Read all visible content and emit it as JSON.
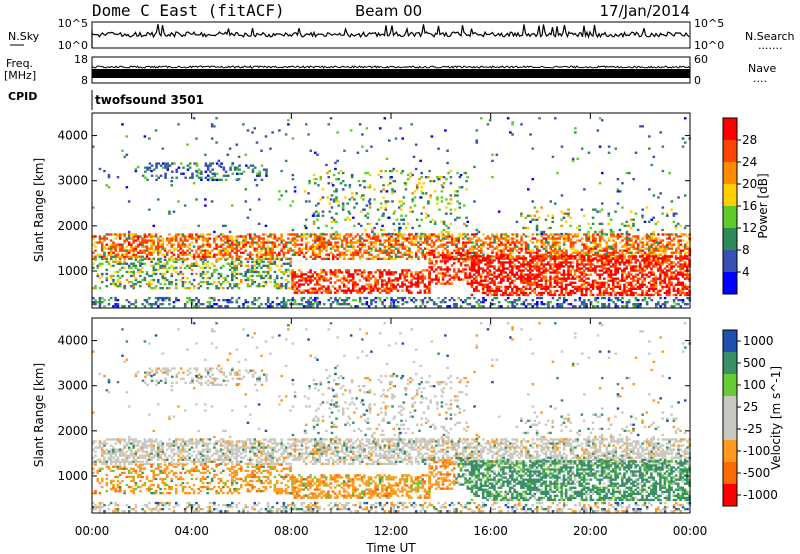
{
  "header": {
    "station": "Dome C East (fitACF)",
    "beam": "Beam 00",
    "date": "17/Jan/2014"
  },
  "strips": {
    "nsky_label": "N.Sky",
    "nsearch_label": "N.Search",
    "nsearch_dots": ".......",
    "nsky_top": "10^5",
    "nsky_bottom": "10^0",
    "nsearch_top": "10^5",
    "nsearch_bottom": "10^0",
    "freq_label_1": "Freq.",
    "freq_label_2": "[MHz]",
    "freq_top": "18",
    "freq_bottom": "8",
    "nave_label": "Nave",
    "nave_dots": "....",
    "nave_top": "60",
    "nave_bottom": "0",
    "cpid_label": "CPID",
    "cpid_value": "twofsound 3501"
  },
  "colors": {
    "power": [
      "#0000ff",
      "#3a4fb4",
      "#2e8b57",
      "#5ecb2a",
      "#ffd000",
      "#ff8c00",
      "#ff4500",
      "#ff0000"
    ],
    "velocity": [
      "#ff0000",
      "#ff6a00",
      "#ff9a1e",
      "#c9c9c1",
      "#c9c9c1",
      "#66cc33",
      "#3a8f66",
      "#2050b0"
    ]
  },
  "chart_data": [
    {
      "type": "heatmap",
      "panel": "power",
      "x_range_hours": [
        0,
        24
      ],
      "x_ticks": [
        "00:00",
        "04:00",
        "08:00",
        "12:00",
        "16:00",
        "20:00",
        "00:00"
      ],
      "xlabel": "Time UT",
      "ylabel": "Slant Range [km]",
      "ylim": [
        180,
        4500
      ],
      "y_ticks": [
        "1000",
        "2000",
        "3000",
        "4000"
      ],
      "colorbar_label": "Power [dB]",
      "colorbar_ticks": [
        "4",
        "8",
        "12",
        "16",
        "20",
        "24",
        "28"
      ],
      "colorbar_range": [
        0,
        30
      ]
    },
    {
      "type": "heatmap",
      "panel": "velocity",
      "x_range_hours": [
        0,
        24
      ],
      "x_ticks": [
        "00:00",
        "04:00",
        "08:00",
        "12:00",
        "16:00",
        "20:00",
        "00:00"
      ],
      "xlabel": "Time UT",
      "ylabel": "Slant Range [km]",
      "ylim": [
        180,
        4500
      ],
      "y_ticks": [
        "1000",
        "2000",
        "3000",
        "4000"
      ],
      "colorbar_label": "Velocity [m s^-1]",
      "colorbar_ticks": [
        "-1000",
        "-500",
        "-100",
        "-25",
        "25",
        "100",
        "500",
        "1000"
      ]
    }
  ]
}
